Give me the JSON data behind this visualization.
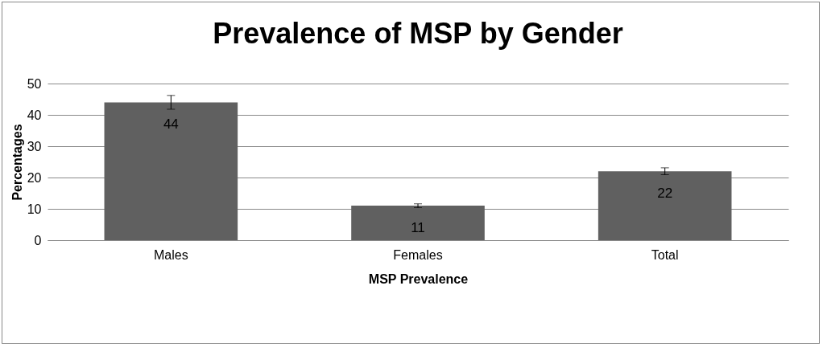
{
  "chart_data": {
    "type": "bar",
    "title": "Prevalence of MSP by Gender",
    "xlabel": "MSP Prevalence",
    "ylabel": "Percentages",
    "categories": [
      "Males",
      "Females",
      "Total"
    ],
    "values": [
      44,
      11,
      22
    ],
    "errors": [
      2.2,
      0.6,
      1.1
    ],
    "color": "#606060",
    "data_labels": true,
    "ylim": [
      0,
      50
    ],
    "yticks": [
      0,
      10,
      20,
      30,
      40,
      50
    ],
    "grid": "y"
  }
}
